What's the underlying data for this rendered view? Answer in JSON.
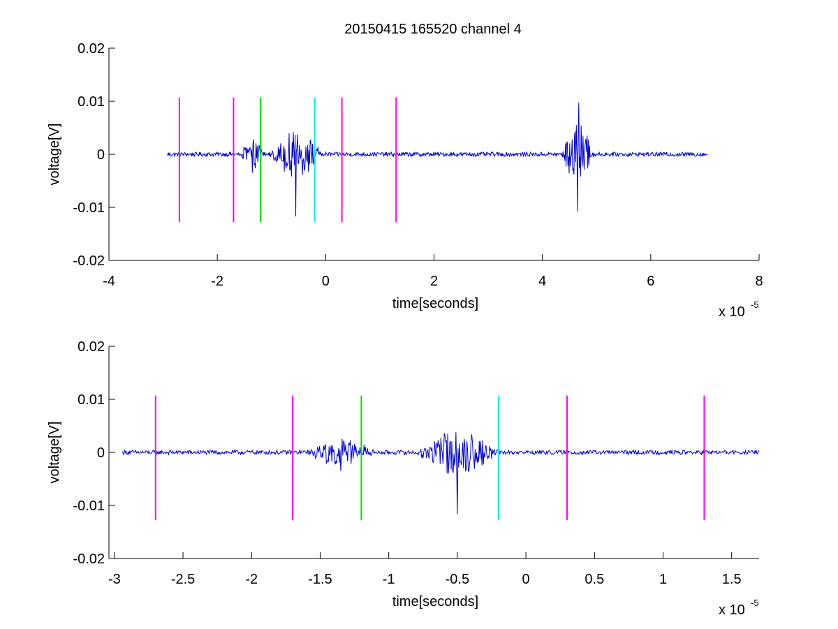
{
  "figure": {
    "title": "20150415 165520 channel 4",
    "background": "#ffffff"
  },
  "chart_data": [
    {
      "type": "line",
      "title": "20150415 165520 channel 4",
      "xlabel": "time[seconds]",
      "ylabel": "voltage[V]",
      "x_exponent_label": "x 10",
      "x_exponent": "-5",
      "xlim": [
        -4,
        8
      ],
      "ylim": [
        -0.02,
        0.02
      ],
      "x_ticks": [
        -4,
        -2,
        0,
        2,
        4,
        6,
        8
      ],
      "x_tick_labels": [
        "-4",
        "-2",
        "0",
        "2",
        "4",
        "6",
        "8"
      ],
      "y_ticks": [
        -0.02,
        -0.01,
        0,
        0.01,
        0.02
      ],
      "y_tick_labels": [
        "-0.02",
        "-0.01",
        "0",
        "0.01",
        "0.02"
      ],
      "grid": false,
      "series": [
        {
          "color": "#0000cc",
          "x_range": [
            -2.92,
            7.05
          ],
          "baseline": 0,
          "noise": 0.0004,
          "bursts": [
            {
              "center": -1.35,
              "width": 0.25,
              "amplitude": 0.0025,
              "min_peak": -0.0035
            },
            {
              "center": -0.55,
              "width": 0.5,
              "amplitude": 0.004,
              "min_peak": -0.0117
            },
            {
              "center": 4.65,
              "width": 0.3,
              "amplitude": 0.006,
              "min_peak": -0.0108,
              "max_peak": 0.0097
            }
          ]
        }
      ],
      "vertical_markers": [
        {
          "x": -2.7,
          "color": "#ff00ff",
          "y_range": [
            -0.0128,
            0.0107
          ]
        },
        {
          "x": -1.7,
          "color": "#ff00ff",
          "y_range": [
            -0.0128,
            0.0107
          ]
        },
        {
          "x": -1.2,
          "color": "#00dd00",
          "y_range": [
            -0.0128,
            0.0107
          ]
        },
        {
          "x": -0.2,
          "color": "#00eeee",
          "y_range": [
            -0.0128,
            0.0107
          ]
        },
        {
          "x": 0.3,
          "color": "#ff00ff",
          "y_range": [
            -0.0128,
            0.0107
          ]
        },
        {
          "x": 1.3,
          "color": "#ff00ff",
          "y_range": [
            -0.0128,
            0.0107
          ]
        }
      ]
    },
    {
      "type": "line",
      "title": "",
      "xlabel": "time[seconds]",
      "ylabel": "voltage[V]",
      "x_exponent_label": "x 10",
      "x_exponent": "-5",
      "xlim": [
        -3.04,
        1.7
      ],
      "ylim": [
        -0.02,
        0.02
      ],
      "x_ticks": [
        -3,
        -2.5,
        -2,
        -1.5,
        -1,
        -0.5,
        0,
        0.5,
        1,
        1.5
      ],
      "x_tick_labels": [
        "-3",
        "-2.5",
        "-2",
        "-1.5",
        "-1",
        "-0.5",
        "0",
        "0.5",
        "1",
        "1.5"
      ],
      "y_ticks": [
        -0.02,
        -0.01,
        0,
        0.01,
        0.02
      ],
      "y_tick_labels": [
        "-0.02",
        "-0.01",
        "0",
        "0.01",
        "0.02"
      ],
      "grid": false,
      "series": [
        {
          "color": "#0000cc",
          "x_range": [
            -2.94,
            1.7
          ],
          "baseline": 0,
          "noise": 0.0004,
          "bursts": [
            {
              "center": -1.35,
              "width": 0.25,
              "amplitude": 0.0025,
              "min_peak": -0.0035
            },
            {
              "center": -0.5,
              "width": 0.3,
              "amplitude": 0.004,
              "min_peak": -0.0117
            }
          ]
        }
      ],
      "vertical_markers": [
        {
          "x": -2.7,
          "color": "#ff00ff",
          "y_range": [
            -0.0128,
            0.0107
          ]
        },
        {
          "x": -1.7,
          "color": "#ff00ff",
          "y_range": [
            -0.0128,
            0.0107
          ]
        },
        {
          "x": -1.2,
          "color": "#00dd00",
          "y_range": [
            -0.0128,
            0.0107
          ]
        },
        {
          "x": -0.2,
          "color": "#00eeee",
          "y_range": [
            -0.0128,
            0.0107
          ]
        },
        {
          "x": 0.3,
          "color": "#ff00ff",
          "y_range": [
            -0.0128,
            0.0107
          ]
        },
        {
          "x": 1.3,
          "color": "#ff00ff",
          "y_range": [
            -0.0128,
            0.0107
          ]
        }
      ]
    }
  ]
}
